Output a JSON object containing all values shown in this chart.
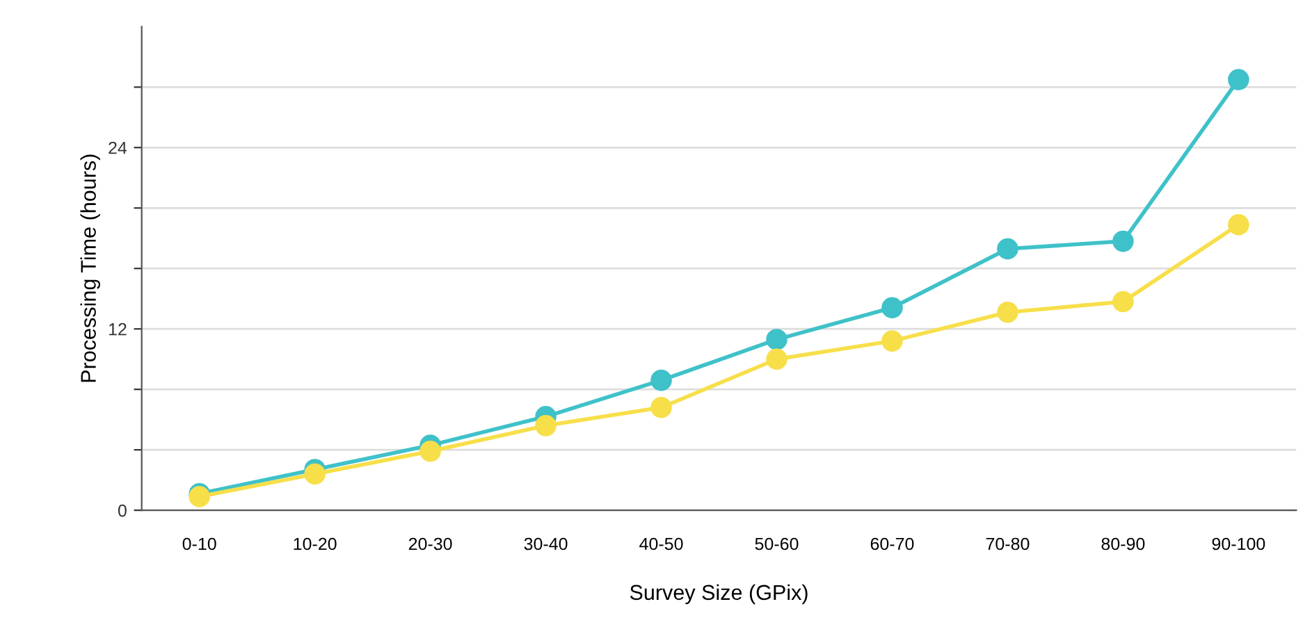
{
  "chart_data": {
    "type": "line",
    "xlabel": "Survey Size (GPix)",
    "ylabel": "Processing Time (hours)",
    "categories": [
      "0-10",
      "10-20",
      "20-30",
      "30-40",
      "40-50",
      "50-60",
      "60-70",
      "70-80",
      "80-90",
      "90-100"
    ],
    "series": [
      {
        "color": "#3fc1c9",
        "values": [
          1.1,
          2.7,
          4.3,
          6.2,
          8.6,
          11.3,
          13.4,
          17.3,
          17.8,
          28.5
        ]
      },
      {
        "color": "#f7df4a",
        "values": [
          0.9,
          2.4,
          3.9,
          5.6,
          6.8,
          10.0,
          11.2,
          13.1,
          13.8,
          18.9
        ]
      }
    ],
    "ylim": [
      0,
      32
    ],
    "yticks": [
      0,
      {
        "value": 4,
        "label": null
      },
      {
        "value": 8,
        "label": null
      },
      12,
      {
        "value": 16,
        "label": null
      },
      {
        "value": 20,
        "label": null
      },
      24,
      {
        "value": 28,
        "label": null
      }
    ],
    "grid": "y",
    "marker": "circle",
    "line_style": "solid",
    "legend": false
  }
}
